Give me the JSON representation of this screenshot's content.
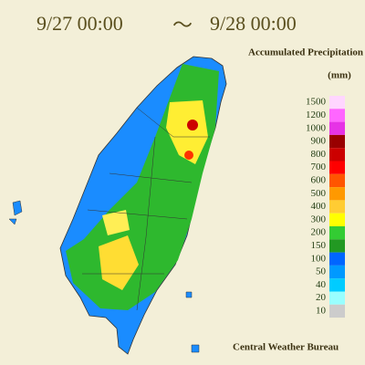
{
  "header": {
    "start": "9/27 00:00",
    "separator": "～",
    "end": "9/28 00:00"
  },
  "legend": {
    "title": "Accumulated Precipitation",
    "unit": "(mm)",
    "levels": [
      "1500",
      "1200",
      "1000",
      "900",
      "800",
      "700",
      "600",
      "500",
      "400",
      "300",
      "200",
      "150",
      "100",
      "50",
      "40",
      "20",
      "10"
    ],
    "colors": [
      "#ffd6ff",
      "#ff66ff",
      "#e633e6",
      "#990000",
      "#cc0000",
      "#ff0000",
      "#ff5500",
      "#ff9900",
      "#ffcc33",
      "#ffff00",
      "#33cc33",
      "#229922",
      "#0066ff",
      "#0099ff",
      "#00ccff",
      "#99ffff",
      "#cccccc"
    ]
  },
  "footer": {
    "credit": "Central Weather Bureau"
  }
}
